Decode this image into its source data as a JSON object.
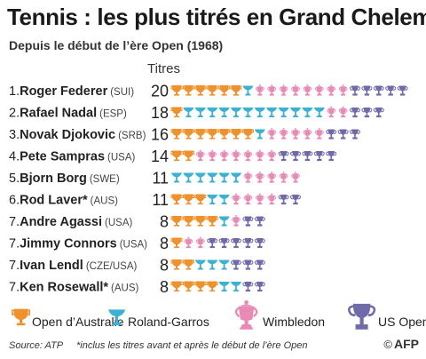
{
  "header": {
    "title": "Tennis : les plus titrés en Grand Chelem",
    "subtitle": "Depuis le début de l’ère Open (1968)",
    "column_header": "Titres"
  },
  "colors": {
    "australie": "#f0922b",
    "roland_garros": "#39b2d3",
    "wimbledon": "#e98ab4",
    "us_open": "#6f6aaa"
  },
  "legend": [
    {
      "key": "australie",
      "label": "Open d’Australie",
      "icon": "trophy-cup-icon"
    },
    {
      "key": "roland_garros",
      "label": "Roland-Garros",
      "icon": "trophy-cup-icon"
    },
    {
      "key": "wimbledon",
      "label": "Wimbledon",
      "icon": "trophy-cup-icon"
    },
    {
      "key": "us_open",
      "label": "US Open",
      "icon": "trophy-cup-icon"
    }
  ],
  "chart_data": {
    "type": "bar",
    "title": "Tennis : les plus titrés en Grand Chelem",
    "subtitle": "Depuis le début de l’ère Open (1968)",
    "value_header": "Titres",
    "series_names": [
      "Open d’Australie",
      "Roland-Garros",
      "Wimbledon",
      "US Open"
    ],
    "rows": [
      {
        "rank": "1.",
        "name": "Roger Federer",
        "country": "(SUI)",
        "total": 20,
        "australie": 6,
        "roland_garros": 1,
        "wimbledon": 8,
        "us_open": 5
      },
      {
        "rank": "2.",
        "name": "Rafael Nadal",
        "country": "(ESP)",
        "total": 18,
        "australie": 1,
        "roland_garros": 12,
        "wimbledon": 2,
        "us_open": 3
      },
      {
        "rank": "3.",
        "name": "Novak Djokovic",
        "country": "(SRB)",
        "total": 16,
        "australie": 7,
        "roland_garros": 1,
        "wimbledon": 5,
        "us_open": 3
      },
      {
        "rank": "4.",
        "name": "Pete Sampras",
        "country": "(USA)",
        "total": 14,
        "australie": 2,
        "roland_garros": 0,
        "wimbledon": 7,
        "us_open": 5
      },
      {
        "rank": "5.",
        "name": "Bjorn Borg",
        "country": "(SWE)",
        "total": 11,
        "australie": 0,
        "roland_garros": 6,
        "wimbledon": 5,
        "us_open": 0
      },
      {
        "rank": "6.",
        "name": "Rod Laver*",
        "country": "(AUS)",
        "total": 11,
        "australie": 3,
        "roland_garros": 2,
        "wimbledon": 4,
        "us_open": 2
      },
      {
        "rank": "7.",
        "name": "Andre Agassi",
        "country": "(USA)",
        "total": 8,
        "australie": 4,
        "roland_garros": 1,
        "wimbledon": 1,
        "us_open": 2
      },
      {
        "rank": "7.",
        "name": "Jimmy Connors",
        "country": "(USA)",
        "total": 8,
        "australie": 1,
        "roland_garros": 0,
        "wimbledon": 2,
        "us_open": 5
      },
      {
        "rank": "7.",
        "name": "Ivan Lendl",
        "country": "(CZE/USA)",
        "total": 8,
        "australie": 2,
        "roland_garros": 3,
        "wimbledon": 0,
        "us_open": 3
      },
      {
        "rank": "7.",
        "name": "Ken Rosewall*",
        "country": "(AUS)",
        "total": 8,
        "australie": 4,
        "roland_garros": 2,
        "wimbledon": 0,
        "us_open": 2
      }
    ]
  },
  "footer": {
    "source": "Source: ATP",
    "footnote": "*inclus les titres avant et après le début de l’ère Open",
    "credit_symbol": "©",
    "credit": "AFP"
  }
}
